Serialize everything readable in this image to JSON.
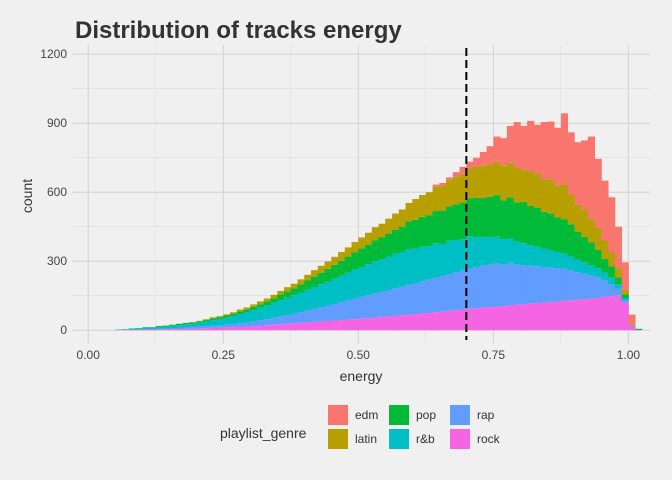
{
  "chart_data": {
    "type": "bar",
    "subtype": "stacked-histogram",
    "title": "Distribution of tracks energy",
    "xlabel": "energy",
    "ylabel": "count",
    "xlim": [
      -0.03,
      1.04
    ],
    "ylim": [
      -60,
      1240
    ],
    "x_ticks": [
      {
        "value": 0.0,
        "label": "0.00"
      },
      {
        "value": 0.25,
        "label": "0.25"
      },
      {
        "value": 0.5,
        "label": "0.50"
      },
      {
        "value": 0.75,
        "label": "0.75"
      },
      {
        "value": 1.0,
        "label": "1.00"
      }
    ],
    "y_ticks": [
      {
        "value": 0,
        "label": "0"
      },
      {
        "value": 300,
        "label": "300"
      },
      {
        "value": 600,
        "label": "600"
      },
      {
        "value": 900,
        "label": "900"
      },
      {
        "value": 1200,
        "label": "1200"
      }
    ],
    "grid": true,
    "legend_position": "bottom",
    "legend_title": "playlist_genre",
    "stack_order": [
      "rock",
      "rap",
      "r&b",
      "pop",
      "latin",
      "edm"
    ],
    "legend_order": [
      "edm",
      "latin",
      "pop",
      "r&b",
      "rap",
      "rock"
    ],
    "bin_start": 0.0,
    "bin_width": 0.0125,
    "bins": 82,
    "vline": {
      "x": 0.7,
      "style": "dashed",
      "color": "#000000"
    },
    "series": [
      {
        "name": "edm",
        "color": "#F8766D",
        "values": [
          0,
          0,
          0,
          0,
          0,
          0,
          0,
          0,
          0,
          0,
          0,
          0,
          0,
          0,
          0,
          0,
          0,
          0,
          0,
          0,
          0,
          0,
          0,
          0,
          0,
          0,
          0,
          0,
          0,
          0,
          0,
          0,
          0,
          0,
          0,
          0,
          0,
          0,
          0,
          0,
          0,
          0,
          0,
          0,
          0,
          0,
          0,
          0,
          0,
          0,
          0,
          10,
          10,
          10,
          20,
          30,
          30,
          40,
          60,
          80,
          110,
          120,
          160,
          200,
          190,
          220,
          210,
          250,
          250,
          250,
          310,
          270,
          270,
          300,
          360,
          300,
          260,
          240,
          180,
          120,
          40,
          0
        ]
      },
      {
        "name": "latin",
        "color": "#B79F00",
        "values": [
          0,
          0,
          0,
          0,
          0,
          0,
          0,
          0,
          0,
          0,
          0,
          0,
          0,
          0,
          0,
          1,
          2,
          3,
          4,
          4,
          5,
          6,
          8,
          8,
          10,
          12,
          12,
          15,
          16,
          18,
          20,
          22,
          25,
          28,
          30,
          32,
          35,
          38,
          40,
          45,
          48,
          52,
          58,
          60,
          65,
          70,
          75,
          80,
          90,
          95,
          100,
          105,
          110,
          115,
          120,
          125,
          130,
          135,
          140,
          140,
          145,
          150,
          150,
          150,
          140,
          150,
          150,
          140,
          150,
          140,
          150,
          130,
          120,
          120,
          100,
          95,
          80,
          60,
          40,
          20,
          5,
          0
        ]
      },
      {
        "name": "pop",
        "color": "#00BA38",
        "values": [
          0,
          0,
          0,
          0,
          1,
          1,
          2,
          2,
          3,
          3,
          4,
          5,
          5,
          6,
          6,
          6,
          6,
          8,
          8,
          8,
          10,
          10,
          12,
          12,
          14,
          15,
          18,
          20,
          25,
          28,
          30,
          35,
          40,
          45,
          50,
          55,
          60,
          65,
          70,
          75,
          80,
          85,
          90,
          95,
          100,
          105,
          110,
          120,
          125,
          130,
          135,
          140,
          145,
          150,
          155,
          160,
          165,
          170,
          170,
          175,
          180,
          170,
          180,
          170,
          180,
          170,
          170,
          160,
          160,
          150,
          150,
          140,
          120,
          110,
          100,
          80,
          60,
          50,
          30,
          15,
          2,
          5
        ]
      },
      {
        "name": "r&b",
        "color": "#00BFC4",
        "values": [
          0,
          0,
          0,
          0,
          1,
          2,
          3,
          4,
          5,
          5,
          7,
          8,
          10,
          12,
          15,
          15,
          18,
          20,
          25,
          28,
          30,
          35,
          40,
          45,
          50,
          55,
          60,
          65,
          70,
          75,
          80,
          85,
          90,
          95,
          100,
          105,
          110,
          115,
          120,
          125,
          130,
          135,
          140,
          140,
          145,
          150,
          150,
          155,
          150,
          150,
          145,
          150,
          140,
          145,
          140,
          135,
          140,
          130,
          125,
          120,
          115,
          110,
          105,
          100,
          95,
          90,
          85,
          80,
          75,
          70,
          65,
          60,
          55,
          50,
          45,
          40,
          35,
          30,
          20,
          10,
          0,
          0
        ]
      },
      {
        "name": "rap",
        "color": "#619CFF",
        "values": [
          0,
          0,
          0,
          0,
          0,
          1,
          1,
          1,
          2,
          2,
          3,
          3,
          4,
          5,
          5,
          6,
          7,
          8,
          9,
          10,
          12,
          14,
          16,
          18,
          20,
          23,
          26,
          30,
          34,
          38,
          42,
          47,
          52,
          57,
          62,
          67,
          72,
          78,
          84,
          90,
          95,
          100,
          105,
          110,
          115,
          120,
          125,
          130,
          135,
          140,
          145,
          150,
          155,
          160,
          165,
          170,
          175,
          180,
          182,
          185,
          190,
          180,
          185,
          175,
          170,
          165,
          160,
          155,
          150,
          145,
          140,
          130,
          120,
          110,
          100,
          90,
          70,
          50,
          30,
          10,
          1,
          0
        ]
      },
      {
        "name": "rock",
        "color": "#F564E3",
        "values": [
          0,
          0,
          0,
          0,
          1,
          1,
          2,
          2,
          3,
          3,
          4,
          4,
          5,
          5,
          6,
          7,
          8,
          9,
          10,
          11,
          12,
          13,
          14,
          16,
          18,
          20,
          22,
          24,
          26,
          28,
          30,
          32,
          34,
          36,
          38,
          40,
          42,
          44,
          46,
          48,
          50,
          52,
          55,
          58,
          60,
          62,
          65,
          68,
          70,
          73,
          75,
          78,
          80,
          84,
          87,
          90,
          93,
          95,
          98,
          100,
          102,
          105,
          108,
          110,
          113,
          115,
          118,
          120,
          122,
          125,
          128,
          130,
          132,
          135,
          137,
          140,
          145,
          148,
          150,
          120,
          20,
          1
        ]
      }
    ]
  }
}
